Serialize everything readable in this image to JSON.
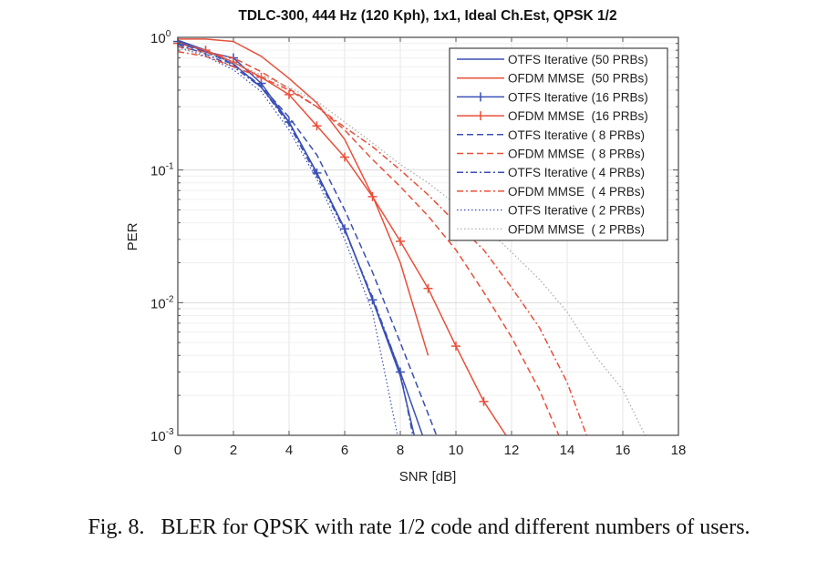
{
  "caption": "Fig. 8.   BLER for QPSK with rate 1/2 code and different numbers of users.",
  "colors": {
    "otfs": "#3a4fb5",
    "ofdm": "#e8503a",
    "ofdm_2prb": "#a8a8a8",
    "axis": "#555555",
    "grid": "#e4e4e4"
  },
  "chart_data": {
    "type": "line",
    "title": "TDLC-300, 444 Hz (120 Kph), 1x1, Ideal Ch.Est, QPSK 1/2",
    "xlabel": "SNR [dB]",
    "ylabel": "PER",
    "xlim": [
      0,
      18
    ],
    "ylim": [
      0.001,
      1
    ],
    "yscale": "log",
    "grid": true,
    "legend_position": "top-right",
    "xticks": [
      0,
      2,
      4,
      6,
      8,
      10,
      12,
      14,
      16,
      18
    ],
    "xtick_labels": [
      "0",
      "2",
      "4",
      "6",
      "8",
      "10",
      "12",
      "14",
      "16",
      "18"
    ],
    "yticks": [
      1,
      0.1,
      0.01,
      0.001
    ],
    "ytick_labels": [
      {
        "base": "10",
        "exp": "0"
      },
      {
        "base": "10",
        "exp": "-1"
      },
      {
        "base": "10",
        "exp": "-2"
      },
      {
        "base": "10",
        "exp": "-3"
      }
    ],
    "series": [
      {
        "name": "OTFS Iterative (50 PRBs)",
        "color_key": "otfs",
        "style": "solid",
        "marker": "none",
        "x": [
          0,
          1,
          2,
          3,
          4,
          5,
          6,
          7,
          8,
          8.5
        ],
        "y": [
          0.95,
          0.8,
          0.63,
          0.42,
          0.23,
          0.095,
          0.036,
          0.0105,
          0.0028,
          0.001
        ]
      },
      {
        "name": "OFDM MMSE  (50 PRBs)",
        "color_key": "ofdm",
        "style": "solid",
        "marker": "none",
        "x": [
          0,
          1,
          2,
          3,
          4,
          5,
          6,
          7,
          8,
          9
        ],
        "y": [
          0.97,
          0.97,
          0.93,
          0.72,
          0.49,
          0.32,
          0.17,
          0.064,
          0.02,
          0.004
        ]
      },
      {
        "name": "OTFS Iterative (16 PRBs)",
        "color_key": "otfs",
        "style": "solid",
        "marker": "plus",
        "x": [
          0,
          1,
          2,
          3,
          4,
          5,
          6,
          7,
          8,
          8.8
        ],
        "y": [
          0.93,
          0.78,
          0.7,
          0.45,
          0.23,
          0.095,
          0.036,
          0.0105,
          0.003,
          0.001
        ]
      },
      {
        "name": "OFDM MMSE  (16 PRBs)",
        "color_key": "ofdm",
        "style": "solid",
        "marker": "plus",
        "x": [
          0,
          1,
          2,
          3,
          4,
          5,
          6,
          7,
          8,
          9,
          10,
          11,
          11.8
        ],
        "y": [
          0.9,
          0.8,
          0.65,
          0.5,
          0.37,
          0.215,
          0.125,
          0.063,
          0.029,
          0.0128,
          0.0047,
          0.0018,
          0.001
        ]
      },
      {
        "name": "OTFS Iterative ( 8 PRBs)",
        "color_key": "otfs",
        "style": "dashed",
        "marker": "none",
        "x": [
          0,
          1,
          2,
          3,
          4,
          5,
          6,
          7,
          8,
          9.3
        ],
        "y": [
          0.9,
          0.78,
          0.62,
          0.43,
          0.25,
          0.13,
          0.05,
          0.017,
          0.005,
          0.001
        ]
      },
      {
        "name": "OFDM MMSE  ( 8 PRBs)",
        "color_key": "ofdm",
        "style": "dashed",
        "marker": "none",
        "x": [
          0,
          2,
          3,
          4,
          5,
          6,
          7,
          8,
          9,
          10,
          11,
          12,
          13,
          13.7
        ],
        "y": [
          0.85,
          0.7,
          0.55,
          0.41,
          0.3,
          0.2,
          0.12,
          0.075,
          0.045,
          0.025,
          0.012,
          0.0055,
          0.0022,
          0.001
        ]
      },
      {
        "name": "OTFS Iterative ( 4 PRBs)",
        "color_key": "otfs",
        "style": "dashdot",
        "marker": "none",
        "x": [
          0,
          1,
          2,
          3,
          4,
          5,
          6,
          7,
          8,
          8.45
        ],
        "y": [
          0.88,
          0.75,
          0.6,
          0.42,
          0.22,
          0.09,
          0.035,
          0.011,
          0.003,
          0.001
        ]
      },
      {
        "name": "OFDM MMSE  ( 4 PRBs)",
        "color_key": "ofdm",
        "style": "dashdot",
        "marker": "none",
        "x": [
          0,
          1,
          2,
          3,
          4,
          5,
          6,
          7,
          8,
          9,
          10,
          11,
          12,
          13,
          14,
          14.7
        ],
        "y": [
          0.78,
          0.72,
          0.6,
          0.5,
          0.4,
          0.3,
          0.21,
          0.15,
          0.1,
          0.065,
          0.04,
          0.025,
          0.013,
          0.0065,
          0.0025,
          0.001
        ]
      },
      {
        "name": "OTFS Iterative ( 2 PRBs)",
        "color_key": "otfs",
        "style": "dotted",
        "marker": "none",
        "x": [
          0,
          1,
          2,
          3,
          4,
          5,
          6,
          7,
          7.9
        ],
        "y": [
          0.85,
          0.72,
          0.57,
          0.39,
          0.2,
          0.085,
          0.03,
          0.0085,
          0.001
        ]
      },
      {
        "name": "OFDM MMSE  ( 2 PRBs)",
        "color_key": "ofdm_2prb",
        "style": "dotted",
        "marker": "none",
        "x": [
          0,
          1,
          2,
          3,
          4,
          5,
          6,
          7,
          8,
          9,
          10,
          11,
          12,
          13,
          14,
          15,
          16,
          16.8
        ],
        "y": [
          0.82,
          0.75,
          0.65,
          0.52,
          0.42,
          0.33,
          0.23,
          0.16,
          0.11,
          0.08,
          0.055,
          0.038,
          0.024,
          0.015,
          0.0085,
          0.004,
          0.0022,
          0.001
        ]
      }
    ]
  }
}
